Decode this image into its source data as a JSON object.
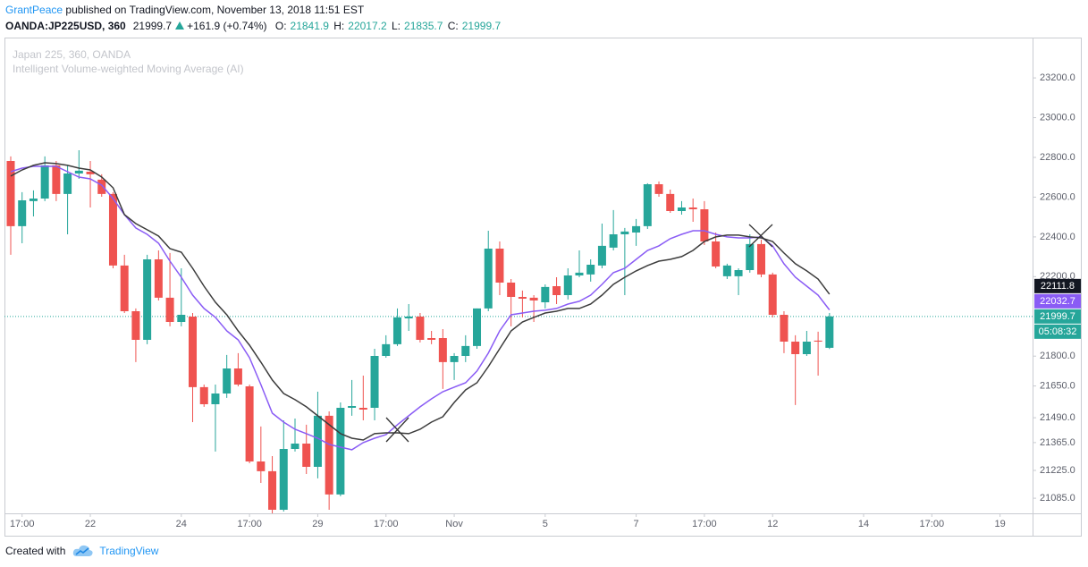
{
  "header": {
    "author": "GrantPeace",
    "published": "published on TradingView.com, November 13, 2018 11:51 EST",
    "symbol": "OANDA:JP225USD, 360",
    "change": "+161.9 (+0.74%)",
    "o_label": "O:",
    "h_label": "H:",
    "l_label": "L:",
    "c_label": "C:"
  },
  "footer": {
    "created": "Created with",
    "brand": "TradingView"
  },
  "chart_data": {
    "type": "candlestick",
    "title": "Japan 225, 360, OANDA",
    "subtitle": "Intelligent Volume-weighted Moving Average (AI)",
    "up_color": "#26a69a",
    "down_color": "#ef5350",
    "open": [
      22782,
      22454,
      22580,
      22593,
      22760,
      22616,
      22719,
      22728,
      22688,
      22616,
      22256,
      22026,
      21882,
      22287,
      22094,
      21972,
      21999,
      21644,
      21558,
      21612,
      21738,
      21648,
      21270,
      21221,
      21027,
      21333,
      21360,
      21243,
      21500,
      21104,
      21540,
      21540,
      21540,
      21801,
      21860,
      21990,
      21999,
      21891,
      21891,
      21770,
      21801,
      21851,
      22040,
      22341,
      22170,
      22098,
      22094,
      22071,
      22152,
      22107,
      22206,
      22211,
      22256,
      22346,
      22413,
      22422,
      22454,
      22665,
      22616,
      22530,
      22548,
      22539,
      22377,
      22202,
      22202,
      22233,
      22364,
      22211,
      22008,
      21873,
      21810,
      21878,
      21841.9
    ],
    "high": [
      22805,
      22625,
      22634,
      22805,
      22782,
      22760,
      22836,
      22782,
      22715,
      22625,
      22310,
      22040,
      22310,
      22332,
      22319,
      22242,
      22017,
      21657,
      21657,
      21806,
      21815,
      21657,
      21446,
      21297,
      21477,
      21486,
      21455,
      21621,
      21522,
      21567,
      21680,
      21702,
      21837,
      21905,
      22040,
      22062,
      22017,
      21927,
      21936,
      21815,
      21905,
      22040,
      22431,
      22377,
      22188,
      22130,
      22107,
      22161,
      22197,
      22242,
      22332,
      22287,
      22467,
      22535,
      22445,
      22490,
      22670,
      22679,
      22638,
      22580,
      22593,
      22580,
      22422,
      22265,
      22242,
      22413,
      22386,
      22220,
      22026,
      21905,
      21927,
      21923,
      22017.2
    ],
    "low": [
      22310,
      22368,
      22503,
      22580,
      22580,
      22413,
      22692,
      22548,
      22602,
      22242,
      22017,
      21770,
      21860,
      22080,
      21950,
      21950,
      21468,
      21545,
      21320,
      21590,
      21648,
      21261,
      21162,
      21009,
      21018,
      21320,
      21207,
      21185,
      21027,
      21095,
      21500,
      21477,
      21477,
      21792,
      21851,
      21927,
      21869,
      21860,
      21635,
      21680,
      21770,
      21837,
      22026,
      22107,
      21950,
      21995,
      21972,
      22040,
      22062,
      22085,
      22197,
      22175,
      22242,
      22332,
      22107,
      22355,
      22440,
      22602,
      22521,
      22512,
      22476,
      22359,
      22242,
      22188,
      22107,
      22220,
      22197,
      21995,
      21815,
      21554,
      21801,
      21702,
      21835.7
    ],
    "close": [
      22454,
      22584,
      22593,
      22760,
      22616,
      22719,
      22733,
      22715,
      22616,
      22256,
      22026,
      21882,
      22287,
      22094,
      21972,
      22008,
      21644,
      21558,
      21612,
      21738,
      21657,
      21270,
      21221,
      21027,
      21333,
      21360,
      21243,
      21500,
      21104,
      21540,
      21549,
      21531,
      21801,
      21860,
      21995,
      21999,
      21882,
      21882,
      21770,
      21801,
      21851,
      22040,
      22341,
      22170,
      22098,
      22089,
      22080,
      22148,
      22107,
      22206,
      22220,
      22260,
      22355,
      22413,
      22427,
      22454,
      22665,
      22616,
      22530,
      22548,
      22539,
      22377,
      22251,
      22256,
      22233,
      22364,
      22211,
      22008,
      21873,
      21810,
      21873,
      21873,
      21999.7
    ],
    "series": [
      {
        "color": "#8a5cf5",
        "values": [
          22728,
          22746,
          22755,
          22755,
          22755,
          22728,
          22701,
          22692,
          22660,
          22593,
          22512,
          22445,
          22413,
          22368,
          22278,
          22197,
          22107,
          22040,
          21995,
          21927,
          21882,
          21792,
          21657,
          21513,
          21468,
          21432,
          21410,
          21387,
          21356,
          21342,
          21329,
          21365,
          21387,
          21405,
          21455,
          21500,
          21545,
          21585,
          21621,
          21644,
          21666,
          21725,
          21815,
          21927,
          22008,
          22017,
          22026,
          22031,
          22040,
          22062,
          22076,
          22107,
          22161,
          22220,
          22242,
          22287,
          22332,
          22355,
          22391,
          22413,
          22431,
          22431,
          22413,
          22400,
          22395,
          22395,
          22400,
          22355,
          22265,
          22197,
          22152,
          22107,
          22032.7
        ]
      },
      {
        "color": "#3c3c3c",
        "values": [
          22706,
          22737,
          22760,
          22773,
          22769,
          22760,
          22746,
          22737,
          22701,
          22647,
          22512,
          22467,
          22436,
          22404,
          22341,
          22323,
          22242,
          22152,
          22071,
          22008,
          21927,
          21855,
          21770,
          21680,
          21612,
          21581,
          21545,
          21500,
          21455,
          21410,
          21387,
          21378,
          21410,
          21414,
          21414,
          21410,
          21432,
          21468,
          21495,
          21567,
          21630,
          21666,
          21747,
          21837,
          21927,
          21972,
          21995,
          22017,
          22026,
          22040,
          22040,
          22062,
          22107,
          22161,
          22197,
          22229,
          22256,
          22278,
          22287,
          22301,
          22332,
          22377,
          22400,
          22409,
          22409,
          22400,
          22395,
          22377,
          22319,
          22265,
          22229,
          22188,
          22111.8
        ]
      }
    ],
    "countdown": "05:08:32",
    "ylim": [
      21009,
      23403
    ],
    "yticks": [
      {
        "value": 23200,
        "label": "23200.0"
      },
      {
        "value": 23000,
        "label": "23000.0"
      },
      {
        "value": 22800,
        "label": "22800.0"
      },
      {
        "value": 22600,
        "label": "22600.0"
      },
      {
        "value": 22400,
        "label": "22400.0"
      },
      {
        "value": 22200,
        "label": "22200.0"
      },
      {
        "value": 21800,
        "label": "21800.0"
      },
      {
        "value": 21650,
        "label": "21650.0"
      },
      {
        "value": 21490,
        "label": "21490.0"
      },
      {
        "value": 21365,
        "label": "21365.0"
      },
      {
        "value": 21225,
        "label": "21225.0"
      },
      {
        "value": 21085,
        "label": "21085.0"
      }
    ],
    "xlim": [
      -0.55,
      89.86
    ],
    "xticks": [
      {
        "value": 1,
        "label": "17:00"
      },
      {
        "value": 7,
        "label": "22"
      },
      {
        "value": 15,
        "label": "24"
      },
      {
        "value": 21,
        "label": "17:00"
      },
      {
        "value": 27,
        "label": "29"
      },
      {
        "value": 33,
        "label": "17:00"
      },
      {
        "value": 39,
        "label": "Nov"
      },
      {
        "value": 47,
        "label": "5"
      },
      {
        "value": 55,
        "label": "7"
      },
      {
        "value": 61,
        "label": "17:00"
      },
      {
        "value": 67,
        "label": "12"
      },
      {
        "value": 75,
        "label": "14"
      },
      {
        "value": 81,
        "label": "17:00"
      },
      {
        "value": 87,
        "label": "19"
      }
    ],
    "grid": false
  }
}
